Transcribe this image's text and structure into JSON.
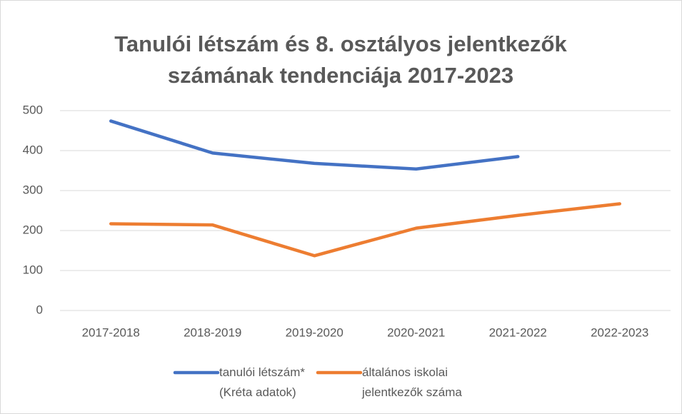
{
  "chart_data": {
    "type": "line",
    "title": "Tanulói létszám és 8. osztályos jelentkezők számának tendenciája 2017-2023",
    "categories": [
      "2017-2018",
      "2018-2019",
      "2019-2020",
      "2020-2021",
      "2021-2022",
      "2022-2023"
    ],
    "series": [
      {
        "name": "tanulói létszám* (Kréta adatok)",
        "color": "#4472c4",
        "values": [
          474,
          394,
          368,
          354,
          385,
          null
        ]
      },
      {
        "name": "általános iskolai jelentkezők száma",
        "color": "#ed7d31",
        "values": [
          217,
          214,
          137,
          206,
          238,
          267
        ]
      }
    ],
    "ylim": [
      0,
      500
    ],
    "yticks": [
      0,
      100,
      200,
      300,
      400,
      500
    ],
    "grid": true,
    "legend": "bottom"
  }
}
